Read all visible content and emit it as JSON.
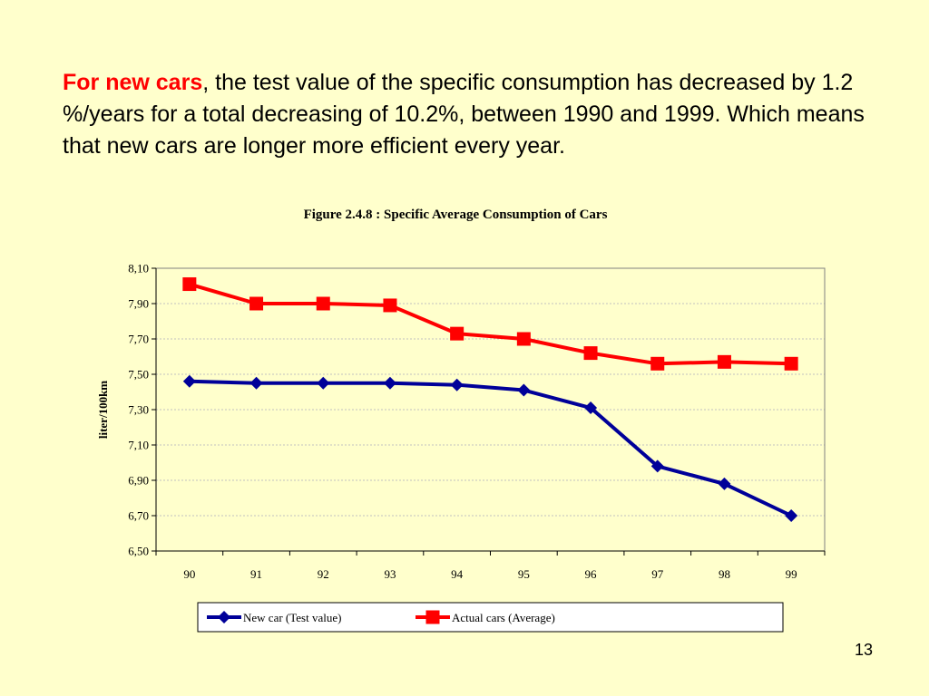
{
  "intro": {
    "highlight": "For new cars",
    "text": ", the test value of the specific consumption has decreased by 1.2 %/years for a total decreasing of  10.2%, between 1990 and 1999. Which means that new cars are longer more efficient every year.",
    "highlight_color": "#ff0000"
  },
  "page_number": "13",
  "chart_data": {
    "type": "line",
    "title": "Figure 2.4.8 : Specific Average Consumption of Cars",
    "xlabel": "",
    "ylabel": "liter/100km",
    "categories": [
      "90",
      "91",
      "92",
      "93",
      "94",
      "95",
      "96",
      "97",
      "98",
      "99"
    ],
    "ylim": [
      6.5,
      8.1
    ],
    "yticks": [
      "6,50",
      "6,70",
      "6,90",
      "7,10",
      "7,30",
      "7,50",
      "7,70",
      "7,90",
      "8,10"
    ],
    "grid": true,
    "legend_position": "bottom",
    "series": [
      {
        "name": "New car  (Test value)",
        "color": "#000099",
        "marker": "diamond",
        "values": [
          7.46,
          7.45,
          7.45,
          7.45,
          7.44,
          7.41,
          7.31,
          6.98,
          6.88,
          6.7
        ]
      },
      {
        "name": "Actual cars (Average)",
        "color": "#ff0000",
        "marker": "square",
        "values": [
          8.01,
          7.9,
          7.9,
          7.89,
          7.73,
          7.7,
          7.62,
          7.56,
          7.57,
          7.56
        ]
      }
    ]
  }
}
